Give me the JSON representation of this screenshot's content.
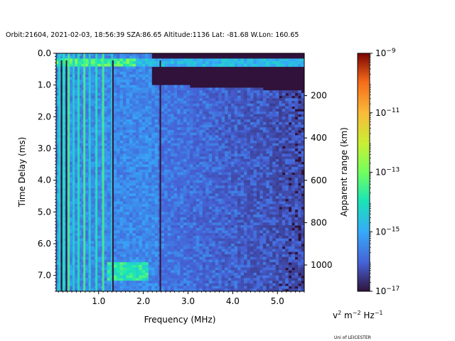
{
  "credit": "Uni of LEICESTER",
  "chart_data": {
    "type": "heatmap",
    "title": "Orbit:21604, 2021-02-03, 18:56:39 SZA:86.65 Altitude:1136 Lat: -81.68 W.Lon: 160.65",
    "xlabel": "Frequency (MHz)",
    "ylabel": "Time Delay (ms)",
    "y2label": "Apparent range (km)",
    "xlim": [
      0.05,
      5.6
    ],
    "ylim": [
      0.0,
      7.5
    ],
    "y_inverted": true,
    "x_ticks": [
      1.0,
      2.0,
      3.0,
      4.0,
      5.0
    ],
    "x_tick_labels": [
      "1.0",
      "2.0",
      "3.0",
      "4.0",
      "5.0"
    ],
    "y_ticks": [
      0.0,
      1.0,
      2.0,
      3.0,
      4.0,
      5.0,
      6.0,
      7.0
    ],
    "y_tick_labels": [
      "0.0",
      "1.0",
      "2.0",
      "3.0",
      "4.0",
      "5.0",
      "6.0",
      "7.0"
    ],
    "y2_range_km_per_ms": 149.9,
    "y2_ticks": [
      200,
      400,
      600,
      800,
      1000
    ],
    "y2_tick_labels": [
      "200",
      "400",
      "600",
      "800",
      "1000"
    ],
    "colorbar": {
      "scale": "log",
      "colormap": "turbo",
      "min_exp": -17,
      "max_exp": -9,
      "ticks": [
        {
          "base": "10",
          "exp": "−17",
          "exp_value": -17
        },
        {
          "base": "10",
          "exp": "−15",
          "exp_value": -15
        },
        {
          "base": "10",
          "exp": "−13",
          "exp_value": -13
        },
        {
          "base": "10",
          "exp": "−11",
          "exp_value": -11
        },
        {
          "base": "10",
          "exp": "−9",
          "exp_value": -9
        }
      ],
      "units": {
        "v": "v",
        "v_exp": "2",
        "m": "m",
        "m_exp": "−2",
        "hz": "Hz",
        "hz_exp": "−1"
      }
    },
    "features": {
      "background_exp": -17,
      "surface_echo_delay_ms": [
        0.15,
        0.4
      ],
      "plasma_lines_mhz": [
        0.12,
        0.22,
        0.33,
        0.44,
        0.55,
        0.68,
        0.8,
        0.95,
        1.1,
        1.3
      ],
      "dark_gap_lines_mhz": [
        0.17,
        0.28,
        1.32,
        2.38
      ],
      "diffuse_echo_cutoff_mhz": 2.3,
      "echo_blob": {
        "freq_mhz": [
          1.2,
          2.1
        ],
        "delay_ms": [
          6.6,
          7.2
        ]
      }
    }
  }
}
